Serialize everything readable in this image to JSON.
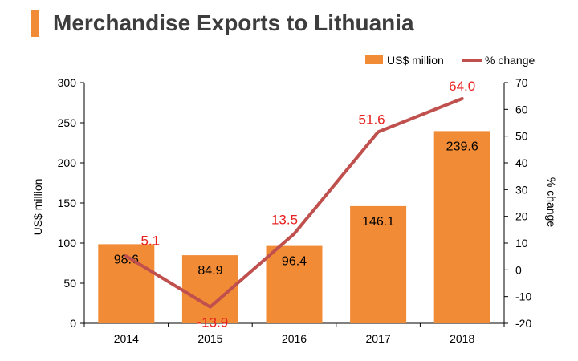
{
  "header": {
    "title": "Merchandise Exports to Lithuania"
  },
  "chart_data": {
    "type": "bar",
    "categories": [
      "2014",
      "2015",
      "2016",
      "2017",
      "2018"
    ],
    "series": [
      {
        "name": "US$ million",
        "type": "bar",
        "axis": "left",
        "color": "#f18b36",
        "values": [
          98.6,
          84.9,
          96.4,
          146.1,
          239.6
        ],
        "labels": [
          "98.6",
          "84.9",
          "96.4",
          "146.1",
          "239.6"
        ]
      },
      {
        "name": "% change",
        "type": "line",
        "axis": "right",
        "color": "#c0504d",
        "values": [
          5.1,
          -13.9,
          13.5,
          51.6,
          64.0
        ],
        "labels": [
          "5.1",
          "-13.9",
          "13.5",
          "51.6",
          "64.0"
        ]
      }
    ],
    "ylabel_left": "US$ million",
    "ylabel_right": "% change",
    "ylim_left": [
      0,
      300
    ],
    "ylim_right": [
      -20,
      70
    ],
    "yticks_left": [
      "0",
      "50",
      "100",
      "150",
      "200",
      "250",
      "300"
    ],
    "yticks_right": [
      "-20",
      "-10",
      "0",
      "10",
      "20",
      "30",
      "40",
      "50",
      "60",
      "70"
    ],
    "legend": "top-right",
    "grid": false,
    "line_label_color": "#e8201f"
  }
}
